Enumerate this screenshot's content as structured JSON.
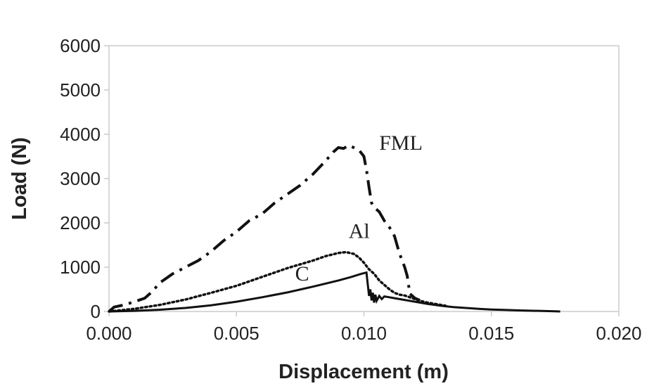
{
  "chart_data": {
    "type": "line",
    "title": "",
    "xlabel": "Displacement (m)",
    "ylabel": "Load (N)",
    "xlim": [
      0,
      0.02
    ],
    "ylim": [
      0,
      6000
    ],
    "x_ticks": [
      "0.000",
      "0.005",
      "0.010",
      "0.015",
      "0.020"
    ],
    "y_ticks": [
      "0",
      "1000",
      "2000",
      "3000",
      "4000",
      "5000",
      "6000"
    ],
    "grid": false,
    "legend": "none",
    "annotations": [
      {
        "text": "FML",
        "x": 0.0106,
        "y": 3650
      },
      {
        "text": "Al",
        "x": 0.0094,
        "y": 1660
      },
      {
        "text": "C",
        "x": 0.0073,
        "y": 700
      }
    ],
    "series": [
      {
        "name": "FML",
        "line_style": "dash-dot",
        "x": [
          0.0,
          0.0002,
          0.0006,
          0.001,
          0.0014,
          0.0016,
          0.0018,
          0.002,
          0.0025,
          0.003,
          0.0035,
          0.004,
          0.0045,
          0.005,
          0.0055,
          0.006,
          0.0065,
          0.007,
          0.0075,
          0.008,
          0.0085,
          0.0088,
          0.009,
          0.0092,
          0.0094,
          0.0096,
          0.0098,
          0.01,
          0.0101,
          0.0102,
          0.0103,
          0.0104,
          0.0106,
          0.0108,
          0.011,
          0.0112,
          0.0113,
          0.0114,
          0.0115,
          0.0116,
          0.0117,
          0.01175,
          0.01178,
          0.0118,
          0.0119,
          0.012,
          0.0122
        ],
        "y": [
          0,
          100,
          150,
          220,
          300,
          400,
          520,
          650,
          850,
          1000,
          1150,
          1350,
          1600,
          1800,
          2050,
          2200,
          2450,
          2650,
          2850,
          3100,
          3400,
          3600,
          3700,
          3680,
          3750,
          3700,
          3650,
          3500,
          3200,
          2800,
          2450,
          2350,
          2250,
          2050,
          1900,
          1700,
          1500,
          1300,
          1150,
          1000,
          800,
          600,
          500,
          400,
          350,
          300,
          250
        ]
      },
      {
        "name": "Al",
        "line_style": "dotted",
        "x": [
          0.0,
          0.001,
          0.002,
          0.003,
          0.004,
          0.005,
          0.006,
          0.007,
          0.008,
          0.0085,
          0.009,
          0.0093,
          0.0096,
          0.0098,
          0.01,
          0.0102,
          0.0104,
          0.0106,
          0.0108,
          0.011,
          0.0112,
          0.0114,
          0.0116,
          0.0118,
          0.012,
          0.0122,
          0.0125,
          0.0128,
          0.013,
          0.0132
        ],
        "y": [
          0,
          60,
          150,
          270,
          420,
          580,
          780,
          980,
          1150,
          1250,
          1320,
          1340,
          1300,
          1220,
          1100,
          950,
          850,
          700,
          600,
          500,
          420,
          380,
          360,
          320,
          280,
          240,
          200,
          170,
          150,
          130
        ]
      },
      {
        "name": "C",
        "line_style": "solid",
        "x": [
          0.0,
          0.001,
          0.002,
          0.003,
          0.004,
          0.005,
          0.006,
          0.007,
          0.008,
          0.009,
          0.0095,
          0.0099,
          0.0101,
          0.0102,
          0.01025,
          0.0103,
          0.01035,
          0.0104,
          0.01045,
          0.0105,
          0.0106,
          0.0107,
          0.0108,
          0.011,
          0.0112,
          0.0115,
          0.012,
          0.0125,
          0.013,
          0.0135,
          0.014,
          0.0145,
          0.015,
          0.0155,
          0.016,
          0.0165,
          0.017,
          0.0175,
          0.0177
        ],
        "y": [
          0,
          15,
          40,
          80,
          140,
          220,
          320,
          430,
          560,
          700,
          780,
          850,
          880,
          350,
          500,
          250,
          420,
          200,
          380,
          240,
          350,
          280,
          340,
          320,
          300,
          270,
          220,
          170,
          130,
          100,
          80,
          60,
          45,
          35,
          25,
          18,
          12,
          5,
          0
        ]
      }
    ]
  }
}
